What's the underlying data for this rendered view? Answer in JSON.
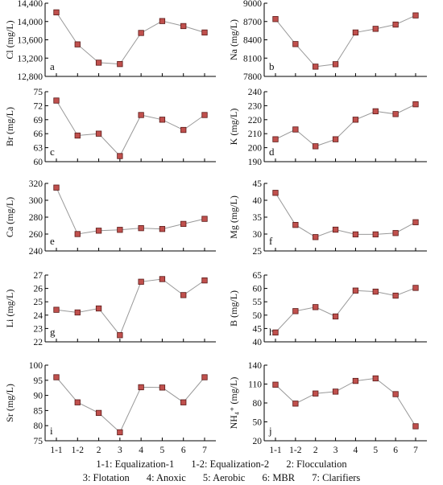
{
  "chart_data": [
    {
      "type": "line",
      "panel": "a",
      "ylabel": "Cl (mg/L)",
      "categories": [
        "1-1",
        "1-2",
        "2",
        "3",
        "4",
        "5",
        "6",
        "7"
      ],
      "values": [
        14200,
        13500,
        13100,
        13070,
        13750,
        14010,
        13900,
        13760
      ],
      "ylim": [
        12800,
        14400
      ],
      "yticks": [
        "12,800",
        "13,200",
        "13,600",
        "14,000",
        "14,400"
      ]
    },
    {
      "type": "line",
      "panel": "b",
      "ylabel": "Na (mg/L)",
      "categories": [
        "1-1",
        "1-2",
        "2",
        "3",
        "4",
        "5",
        "6",
        "7"
      ],
      "values": [
        8740,
        8330,
        7960,
        8000,
        8520,
        8580,
        8650,
        8800
      ],
      "ylim": [
        7800,
        9000
      ],
      "yticks": [
        "7800",
        "8100",
        "8400",
        "8700",
        "9000"
      ]
    },
    {
      "type": "line",
      "panel": "c",
      "ylabel": "Br (mg/L)",
      "categories": [
        "1-1",
        "1-2",
        "2",
        "3",
        "4",
        "5",
        "6",
        "7"
      ],
      "values": [
        73.1,
        65.6,
        66.0,
        61.2,
        70.0,
        69.0,
        66.8,
        70.0
      ],
      "ylim": [
        60,
        75
      ],
      "yticks": [
        "60",
        "63",
        "66",
        "69",
        "72",
        "75"
      ]
    },
    {
      "type": "line",
      "panel": "d",
      "ylabel": "K (mg/L)",
      "categories": [
        "1-1",
        "1-2",
        "2",
        "3",
        "4",
        "5",
        "6",
        "7"
      ],
      "values": [
        206,
        213,
        201,
        206,
        220,
        226,
        224,
        231
      ],
      "ylim": [
        190,
        240
      ],
      "yticks": [
        "190",
        "200",
        "210",
        "220",
        "230",
        "240"
      ]
    },
    {
      "type": "line",
      "panel": "e",
      "ylabel": "Ca (mg/L)",
      "categories": [
        "1-1",
        "1-2",
        "2",
        "3",
        "4",
        "5",
        "6",
        "7"
      ],
      "values": [
        315,
        260,
        264,
        265,
        267,
        266,
        272,
        278
      ],
      "ylim": [
        240,
        320
      ],
      "yticks": [
        "240",
        "260",
        "280",
        "300",
        "320"
      ]
    },
    {
      "type": "line",
      "panel": "f",
      "ylabel": "Mg (mg/L)",
      "categories": [
        "1-1",
        "1-2",
        "2",
        "3",
        "4",
        "5",
        "6",
        "7"
      ],
      "values": [
        42.2,
        32.7,
        29.1,
        31.3,
        29.9,
        29.9,
        30.3,
        33.5
      ],
      "ylim": [
        25,
        45
      ],
      "yticks": [
        "25",
        "30",
        "35",
        "40",
        "45"
      ]
    },
    {
      "type": "line",
      "panel": "g",
      "ylabel": "Li (mg/L)",
      "categories": [
        "1-1",
        "1-2",
        "2",
        "3",
        "4",
        "5",
        "6",
        "7"
      ],
      "values": [
        24.4,
        24.2,
        24.5,
        22.5,
        26.5,
        26.7,
        25.5,
        26.6
      ],
      "ylim": [
        22,
        27
      ],
      "yticks": [
        "22",
        "23",
        "24",
        "25",
        "26",
        "27"
      ]
    },
    {
      "type": "line",
      "panel": "h",
      "ylabel": "B (mg/L)",
      "categories": [
        "1-1",
        "1-2",
        "2",
        "3",
        "4",
        "5",
        "6",
        "7"
      ],
      "values": [
        43.5,
        51.5,
        53.0,
        49.5,
        59.2,
        58.8,
        57.3,
        60.2
      ],
      "ylim": [
        40,
        65
      ],
      "yticks": [
        "40",
        "45",
        "50",
        "55",
        "60",
        "65"
      ]
    },
    {
      "type": "line",
      "panel": "i",
      "ylabel": "Sr (mg/L)",
      "categories": [
        "1-1",
        "1-2",
        "2",
        "3",
        "4",
        "5",
        "6",
        "7"
      ],
      "values": [
        96,
        87.7,
        84.2,
        77.8,
        92.7,
        92.6,
        87.7,
        96
      ],
      "ylim": [
        75,
        100
      ],
      "yticks": [
        "75",
        "80",
        "85",
        "90",
        "95",
        "100"
      ]
    },
    {
      "type": "line",
      "panel": "j",
      "ylabel": "NH₄⁺ (mg/L)",
      "categories": [
        "1-1",
        "1-2",
        "2",
        "3",
        "4",
        "5",
        "6",
        "7"
      ],
      "values": [
        109,
        79,
        95,
        98,
        115,
        119,
        94,
        43
      ],
      "ylim": [
        20,
        140
      ],
      "yticks": [
        "20",
        "50",
        "80",
        "110",
        "140"
      ]
    }
  ],
  "colors": {
    "marker_fill": "#c0504d",
    "marker_stroke": "#5a1a18",
    "line": "#999999",
    "axis": "#000000"
  },
  "legend": {
    "line1": [
      "1-1: Equalization-1",
      "1-2: Equalization-2",
      "2: Flocculation"
    ],
    "line2": [
      "3: Flotation",
      "4: Anoxic",
      "5: Aerobic",
      "6: MBR",
      "7: Clarifiers"
    ]
  }
}
